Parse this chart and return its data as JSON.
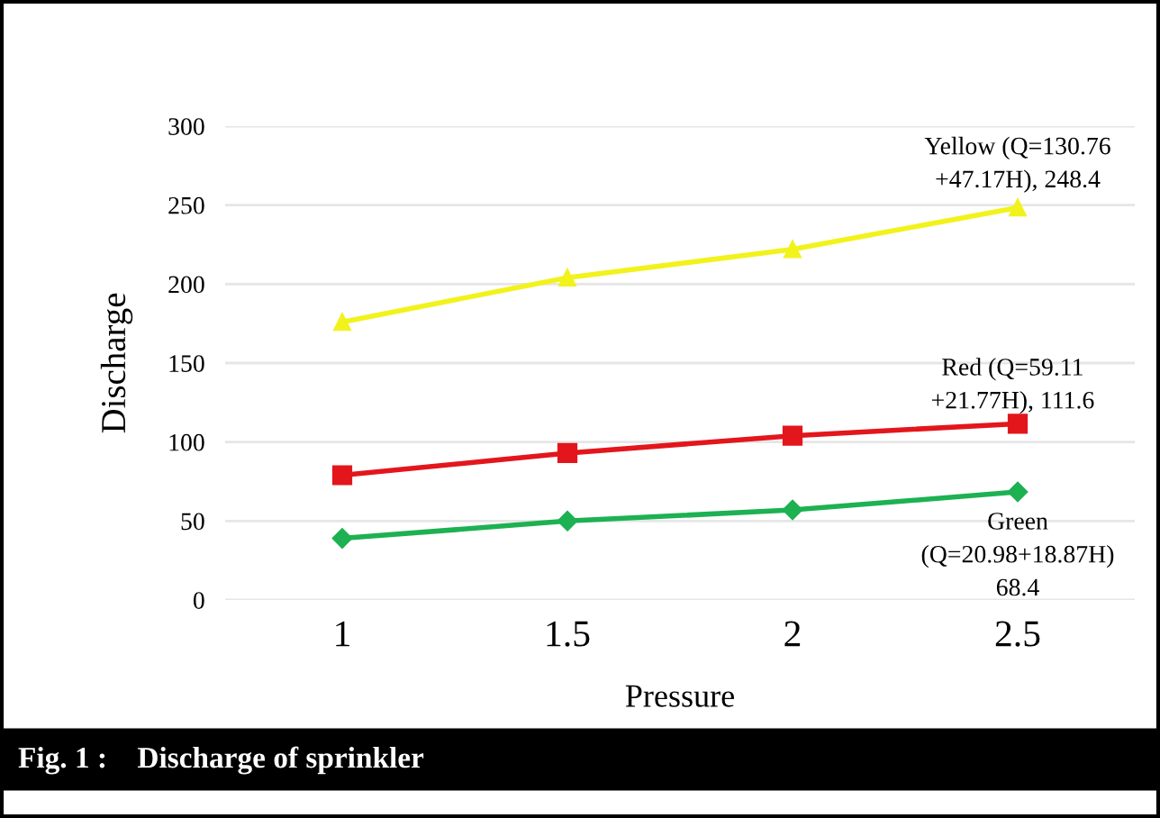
{
  "chart_data": {
    "type": "line",
    "xlabel": "Pressure",
    "ylabel": "Discharge",
    "categories": [
      "1",
      "1.5",
      "2",
      "2.5"
    ],
    "series": [
      {
        "color": "#f2f21c",
        "marker": "triangle",
        "values": [
          176,
          204,
          222,
          248.4
        ]
      },
      {
        "color": "#e3161c",
        "marker": "square",
        "values": [
          79,
          93,
          104,
          111.6
        ]
      },
      {
        "color": "#1db152",
        "marker": "diamond",
        "values": [
          39,
          50,
          57,
          68.4
        ]
      }
    ],
    "ylim": [
      0,
      300
    ],
    "yticks": [
      0,
      50,
      100,
      150,
      200,
      250,
      300
    ],
    "grid": "y",
    "legend": false,
    "annotations": [
      {
        "text": "Yellow (Q=130.76\n+47.17H), 248.4",
        "x": "2.5",
        "y": 248.4
      },
      {
        "text": "Red (Q=59.11\n+21.77H), 111.6",
        "x": "2.5",
        "y": 111.6
      },
      {
        "text": "Green\n(Q=20.98+18.87H)\n68.4",
        "x": "2.5",
        "y": 68.4
      },
      "Fig. 1 :    Discharge of sprinkler"
    ]
  }
}
